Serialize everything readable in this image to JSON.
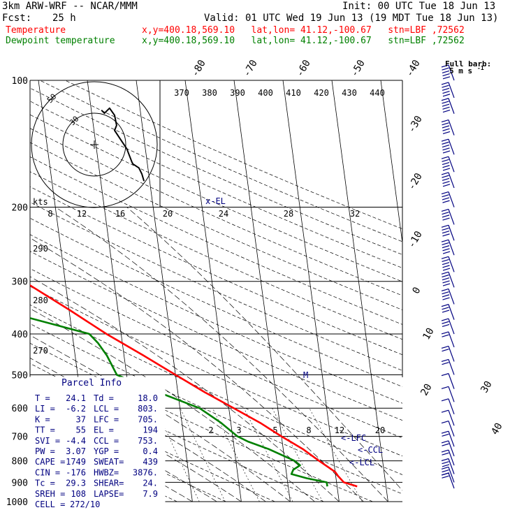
{
  "header": {
    "model": "3km ARW-WRF -- NCAR/MMM",
    "init": "Init: 00 UTC Tue 18 Jun 13",
    "fcst_label": "Fcst:",
    "fcst_value": "25 h",
    "valid": "Valid: 01 UTC Wed 19 Jun 13 (19 MDT Tue 18 Jun 13)",
    "temp_label": "Temperature",
    "temp_info": "x,y=400.18,569.10   lat,lon= 41.12,-100.67   stn=LBF ,72562",
    "dew_label": "Dewpoint temperature",
    "dew_info": "x,y=400.18,569.10   lat,lon= 41.12,-100.67   stn=LBF ,72562"
  },
  "barb_legend": {
    "title": "Full barb:",
    "value": "5 m s",
    "superscript": "-1"
  },
  "colors": {
    "temperature": "#ff0000",
    "dewpoint": "#008000",
    "adiabats": "#000000",
    "barbs": "#000080",
    "grid": "#000000"
  },
  "chart_data": {
    "type": "line",
    "title": "",
    "xlabel": "",
    "ylabel": "",
    "y_scale": "log-pressure",
    "ylim": [
      1000,
      100
    ],
    "pressure_levels": [
      100,
      200,
      300,
      400,
      500,
      600,
      700,
      800,
      900,
      1000
    ],
    "pressure_tick_labels": [
      "100",
      "200",
      "300",
      "400",
      "500",
      "600",
      "700",
      "800",
      "900",
      "1000"
    ],
    "isotherm_labels_top": [
      "-80",
      "-70",
      "-60",
      "-50",
      "-40"
    ],
    "isotherm_labels_right": [
      "-30",
      "-20",
      "-10",
      "0",
      "10",
      "20",
      "30",
      "40"
    ],
    "theta_labels": [
      "370",
      "380",
      "390",
      "400",
      "410",
      "420",
      "430",
      "440"
    ],
    "theta_e_labels": [
      "290",
      "280",
      "270"
    ],
    "mixing_ratio_labels": [
      "2",
      "3",
      "5",
      "8",
      "12",
      "20"
    ],
    "series": [
      {
        "name": "Temperature",
        "values": [
          [
            920,
            24.1
          ],
          [
            900,
            21.5
          ],
          [
            870,
            20.5
          ],
          [
            850,
            20.0
          ],
          [
            800,
            17.0
          ],
          [
            750,
            14.0
          ],
          [
            700,
            10.0
          ],
          [
            650,
            6.0
          ],
          [
            600,
            1.0
          ],
          [
            550,
            -4.5
          ],
          [
            500,
            -10.0
          ],
          [
            450,
            -16.0
          ],
          [
            400,
            -23.0
          ],
          [
            350,
            -30.0
          ],
          [
            300,
            -38.5
          ],
          [
            260,
            -46.0
          ],
          [
            230,
            -52.5
          ],
          [
            210,
            -57.0
          ],
          [
            200,
            -59.5
          ],
          [
            190,
            -61.5
          ],
          [
            170,
            -60.0
          ],
          [
            150,
            -57.5
          ],
          [
            130,
            -56.0
          ],
          [
            115,
            -54.5
          ],
          [
            100,
            -54.0
          ]
        ]
      },
      {
        "name": "Dewpoint temperature",
        "values": [
          [
            920,
            18.0
          ],
          [
            900,
            18.0
          ],
          [
            880,
            14.0
          ],
          [
            860,
            11.0
          ],
          [
            840,
            11.5
          ],
          [
            820,
            13.0
          ],
          [
            800,
            12.0
          ],
          [
            750,
            7.0
          ],
          [
            720,
            3.0
          ],
          [
            700,
            1.0
          ],
          [
            650,
            -2.0
          ],
          [
            600,
            -6.0
          ],
          [
            550,
            -14.0
          ],
          [
            500,
            -22.0
          ],
          [
            450,
            -23.5
          ],
          [
            420,
            -25.0
          ],
          [
            400,
            -26.5
          ],
          [
            350,
            -44.5
          ],
          [
            330,
            -47.5
          ],
          [
            300,
            -49.5
          ],
          [
            280,
            -54.5
          ],
          [
            250,
            -57.5
          ],
          [
            230,
            -61.0
          ],
          [
            210,
            -65.0
          ],
          [
            200,
            -67.5
          ],
          [
            180,
            -70.0
          ],
          [
            160,
            -73.0
          ],
          [
            130,
            -78.0
          ],
          [
            115,
            -81.0
          ],
          [
            100,
            -82.0
          ]
        ]
      }
    ],
    "annotations": [
      "x-EL",
      "<-LFC",
      "<-CCL",
      "<-LCL",
      "M"
    ],
    "wind_barbs": {
      "units": "m s-1",
      "pressures": [
        100,
        110,
        120,
        135,
        150,
        165,
        180,
        200,
        220,
        240,
        260,
        285,
        310,
        340,
        370,
        400,
        430,
        465,
        500,
        540,
        580,
        620,
        660,
        700,
        740,
        780,
        820,
        860,
        900,
        930
      ],
      "speeds": [
        25,
        25,
        25,
        25,
        25,
        25,
        25,
        20,
        20,
        20,
        25,
        25,
        25,
        20,
        15,
        15,
        10,
        10,
        10,
        5,
        5,
        5,
        5,
        5,
        10,
        10,
        10,
        15,
        15,
        10
      ]
    }
  },
  "hodograph": {
    "units_label": "kts",
    "ring_labels": [
      "50",
      "30"
    ],
    "x_tick_labels": [
      "8",
      "12",
      "16",
      "20",
      "24",
      "28",
      "32"
    ],
    "path": [
      [
        7,
        34
      ],
      [
        10,
        31
      ],
      [
        15,
        36
      ],
      [
        20,
        29
      ],
      [
        22,
        19
      ],
      [
        20,
        14
      ],
      [
        26,
        5
      ],
      [
        32,
        -4
      ],
      [
        37,
        -17
      ],
      [
        38,
        -19
      ],
      [
        44,
        -23
      ],
      [
        47,
        -29
      ],
      [
        49,
        -36
      ]
    ]
  },
  "parcel_info": {
    "title": "Parcel Info",
    "rows": [
      [
        "T   =",
        "24.1",
        "Td  =",
        "18.0"
      ],
      [
        "LI  =",
        "-6.2",
        "LCL =",
        "803."
      ],
      [
        "K   =",
        "37",
        "LFC =",
        "705."
      ],
      [
        "TT  =",
        "55",
        "EL  =",
        "194"
      ],
      [
        "SVI =",
        "-4.4",
        "CCL =",
        "753."
      ],
      [
        "PW  =",
        "3.07",
        "YGP =",
        "0.4"
      ],
      [
        "CAPE =",
        "1749",
        "SWEAT=",
        "439"
      ],
      [
        "CIN  =",
        "-176",
        "HWBZ=",
        "3876."
      ],
      [
        "Tc  =",
        "29.3",
        "SHEAR=",
        "24."
      ],
      [
        "SREH =",
        "108",
        "LAPSE=",
        "7.9"
      ]
    ],
    "cell_label": "CELL =",
    "cell_value": "272/10"
  }
}
